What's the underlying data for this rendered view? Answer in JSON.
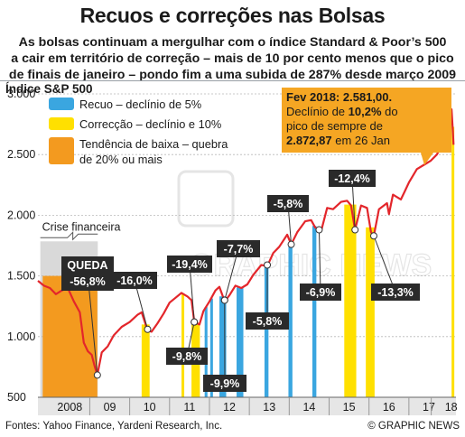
{
  "header": {
    "title": "Recuos e correções nas Bolsas",
    "subtitle_lines": [
      "As bolsas continuam a mergulhar com o índice Standard & Poor’s 500",
      "a cair em território de correção – mais de 10 por cento menos que o pico",
      "de finais de janeiro – pondo fim a uma subida de 287% desde março 2009"
    ]
  },
  "footer": {
    "source": "Fontes: Yahoo Finance, Yardeni Research, Inc.",
    "credit": "© GRAPHIC NEWS"
  },
  "watermark": "GRAPHIC NEWS",
  "colors": {
    "line": "#e3262b",
    "recuo": "#3aa6e0",
    "correccao": "#ffe000",
    "tendencia": "#f39a1f",
    "crise": "#d9d9d9",
    "label_bg": "#2a2a2a",
    "callout": "#f5a623"
  },
  "chart_data": {
    "type": "line",
    "ylabel": "Índice S&P 500",
    "ylim": [
      500,
      3000
    ],
    "yticks": [
      500,
      1000,
      1500,
      2000,
      2500,
      3000
    ],
    "ytick_labels": [
      "500",
      "1.000",
      "1.500",
      "2.000",
      "2.500",
      "3.000"
    ],
    "xlim": [
      2007.7,
      2018.18
    ],
    "xticks": [
      {
        "label": "2008",
        "pos": 2008.5
      },
      {
        "label": "09",
        "pos": 2009.5
      },
      {
        "label": "10",
        "pos": 2010.5
      },
      {
        "label": "11",
        "pos": 2011.5
      },
      {
        "label": "12",
        "pos": 2012.5
      },
      {
        "label": "13",
        "pos": 2013.5
      },
      {
        "label": "14",
        "pos": 2014.5
      },
      {
        "label": "15",
        "pos": 2015.5
      },
      {
        "label": "16",
        "pos": 2016.5
      },
      {
        "label": "17",
        "pos": 2017.5
      },
      {
        "label": "18",
        "pos": 2018.06
      }
    ],
    "series": [
      {
        "points": [
          [
            2007.7,
            1460
          ],
          [
            2007.85,
            1420
          ],
          [
            2008.0,
            1400
          ],
          [
            2008.15,
            1350
          ],
          [
            2008.3,
            1380
          ],
          [
            2008.45,
            1400
          ],
          [
            2008.6,
            1290
          ],
          [
            2008.75,
            1200
          ],
          [
            2008.85,
            950
          ],
          [
            2008.95,
            880
          ],
          [
            2009.05,
            850
          ],
          [
            2009.12,
            760
          ],
          [
            2009.19,
            683
          ],
          [
            2009.3,
            870
          ],
          [
            2009.45,
            920
          ],
          [
            2009.6,
            1010
          ],
          [
            2009.8,
            1080
          ],
          [
            2010.0,
            1120
          ],
          [
            2010.2,
            1180
          ],
          [
            2010.3,
            1200
          ],
          [
            2010.45,
            1050
          ],
          [
            2010.55,
            1040
          ],
          [
            2010.7,
            1110
          ],
          [
            2010.85,
            1190
          ],
          [
            2011.0,
            1280
          ],
          [
            2011.15,
            1320
          ],
          [
            2011.3,
            1360
          ],
          [
            2011.45,
            1330
          ],
          [
            2011.55,
            1300
          ],
          [
            2011.62,
            1120
          ],
          [
            2011.75,
            1100
          ],
          [
            2011.85,
            1210
          ],
          [
            2012.0,
            1290
          ],
          [
            2012.15,
            1380
          ],
          [
            2012.25,
            1410
          ],
          [
            2012.38,
            1290
          ],
          [
            2012.5,
            1340
          ],
          [
            2012.65,
            1420
          ],
          [
            2012.8,
            1400
          ],
          [
            2012.95,
            1430
          ],
          [
            2013.1,
            1510
          ],
          [
            2013.3,
            1590
          ],
          [
            2013.45,
            1580
          ],
          [
            2013.6,
            1690
          ],
          [
            2013.75,
            1740
          ],
          [
            2013.95,
            1840
          ],
          [
            2014.05,
            1760
          ],
          [
            2014.2,
            1860
          ],
          [
            2014.4,
            1950
          ],
          [
            2014.55,
            1960
          ],
          [
            2014.65,
            1900
          ],
          [
            2014.8,
            1870
          ],
          [
            2014.95,
            2060
          ],
          [
            2015.1,
            2050
          ],
          [
            2015.3,
            2110
          ],
          [
            2015.45,
            2120
          ],
          [
            2015.55,
            2080
          ],
          [
            2015.65,
            1880
          ],
          [
            2015.8,
            2080
          ],
          [
            2015.95,
            2060
          ],
          [
            2016.05,
            1860
          ],
          [
            2016.12,
            1830
          ],
          [
            2016.25,
            2050
          ],
          [
            2016.45,
            2100
          ],
          [
            2016.5,
            2010
          ],
          [
            2016.6,
            2170
          ],
          [
            2016.8,
            2130
          ],
          [
            2016.9,
            2200
          ],
          [
            2017.0,
            2270
          ],
          [
            2017.2,
            2380
          ],
          [
            2017.4,
            2420
          ],
          [
            2017.55,
            2450
          ],
          [
            2017.7,
            2500
          ],
          [
            2017.85,
            2590
          ],
          [
            2017.98,
            2680
          ],
          [
            2018.03,
            2760
          ],
          [
            2018.07,
            2872.87
          ],
          [
            2018.1,
            2700
          ],
          [
            2018.12,
            2581
          ]
        ]
      }
    ],
    "bands": [
      {
        "type": "tendencia",
        "x0": 2007.82,
        "x1": 2009.19
      },
      {
        "type": "correccao",
        "x0": 2010.3,
        "x1": 2010.5
      },
      {
        "type": "correccao",
        "x0": 2011.3,
        "x1": 2011.35
      },
      {
        "type": "correccao",
        "x0": 2011.55,
        "x1": 2011.76
      },
      {
        "type": "recuo",
        "x0": 2011.88,
        "x1": 2011.95
      },
      {
        "type": "recuo",
        "x0": 2012.02,
        "x1": 2012.06
      },
      {
        "type": "recuo",
        "x0": 2012.25,
        "x1": 2012.42
      },
      {
        "type": "recuo",
        "x0": 2012.68,
        "x1": 2012.85
      },
      {
        "type": "recuo",
        "x0": 2013.38,
        "x1": 2013.48
      },
      {
        "type": "recuo",
        "x0": 2013.98,
        "x1": 2014.08
      },
      {
        "type": "recuo",
        "x0": 2014.58,
        "x1": 2014.68
      },
      {
        "type": "correccao",
        "x0": 2015.38,
        "x1": 2015.68
      },
      {
        "type": "correccao",
        "x0": 2015.92,
        "x1": 2016.14
      },
      {
        "type": "correccao",
        "x0": 2018.07,
        "x1": 2018.12
      }
    ],
    "crisis": {
      "label": "Crise financeira",
      "x0": 2007.76,
      "x1": 2009.2,
      "top": 1785
    },
    "legend": [
      {
        "key": "recuo",
        "label": "Recuo – declínio de 5%"
      },
      {
        "key": "correccao",
        "label": "Correcção – declínio e 10%"
      },
      {
        "key": "tendencia",
        "label": [
          "Tendência de baixa – quebra",
          "de 20% ou mais"
        ]
      }
    ],
    "annotations": [
      {
        "text": "-56,8%",
        "title": "QUEDA",
        "x": 2009.19,
        "y": 683
      },
      {
        "text": "-16,0%",
        "x": 2010.45,
        "y": 1060
      },
      {
        "text": "-19,4%",
        "x": 2011.62,
        "y": 1120
      },
      {
        "text": "-9,8%",
        "x": 2011.62,
        "y": 1120
      },
      {
        "text": "-9,9%",
        "x": 2012.38,
        "y": 1300
      },
      {
        "text": "-7,7%",
        "x": 2012.38,
        "y": 1300
      },
      {
        "text": "-5,8%",
        "x": 2013.45,
        "y": 1590
      },
      {
        "text": "-5,8%",
        "x": 2014.05,
        "y": 1760
      },
      {
        "text": "-6,9%",
        "x": 2014.75,
        "y": 1880
      },
      {
        "text": "-12,4%",
        "x": 2015.65,
        "y": 1880
      },
      {
        "text": "-13,3%",
        "x": 2016.12,
        "y": 1830
      }
    ],
    "callout": {
      "line1": "Fev 2018: 2.581,00.",
      "line2_pre": "Declínio de ",
      "line2_bold": "10,2%",
      "line2_post": " do",
      "line3": "pico de sempre de",
      "line4_bold": "2.872,87",
      "line4_post": " em 26 Jan"
    }
  }
}
